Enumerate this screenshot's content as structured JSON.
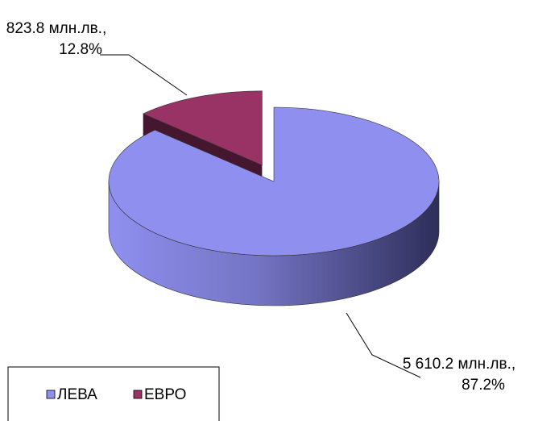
{
  "chart_data": {
    "type": "pie",
    "categories": [
      "ЛЕВА",
      "ЕВРО"
    ],
    "values": [
      5610.2,
      823.8
    ],
    "value_labels": [
      [
        "5 610.2 млн.лв.,",
        "87.2%"
      ],
      [
        "823.8 млн.лв.,",
        "12.8%"
      ]
    ],
    "colors": [
      "#8f8fef",
      "#993366"
    ],
    "legend": "bottom-left"
  }
}
